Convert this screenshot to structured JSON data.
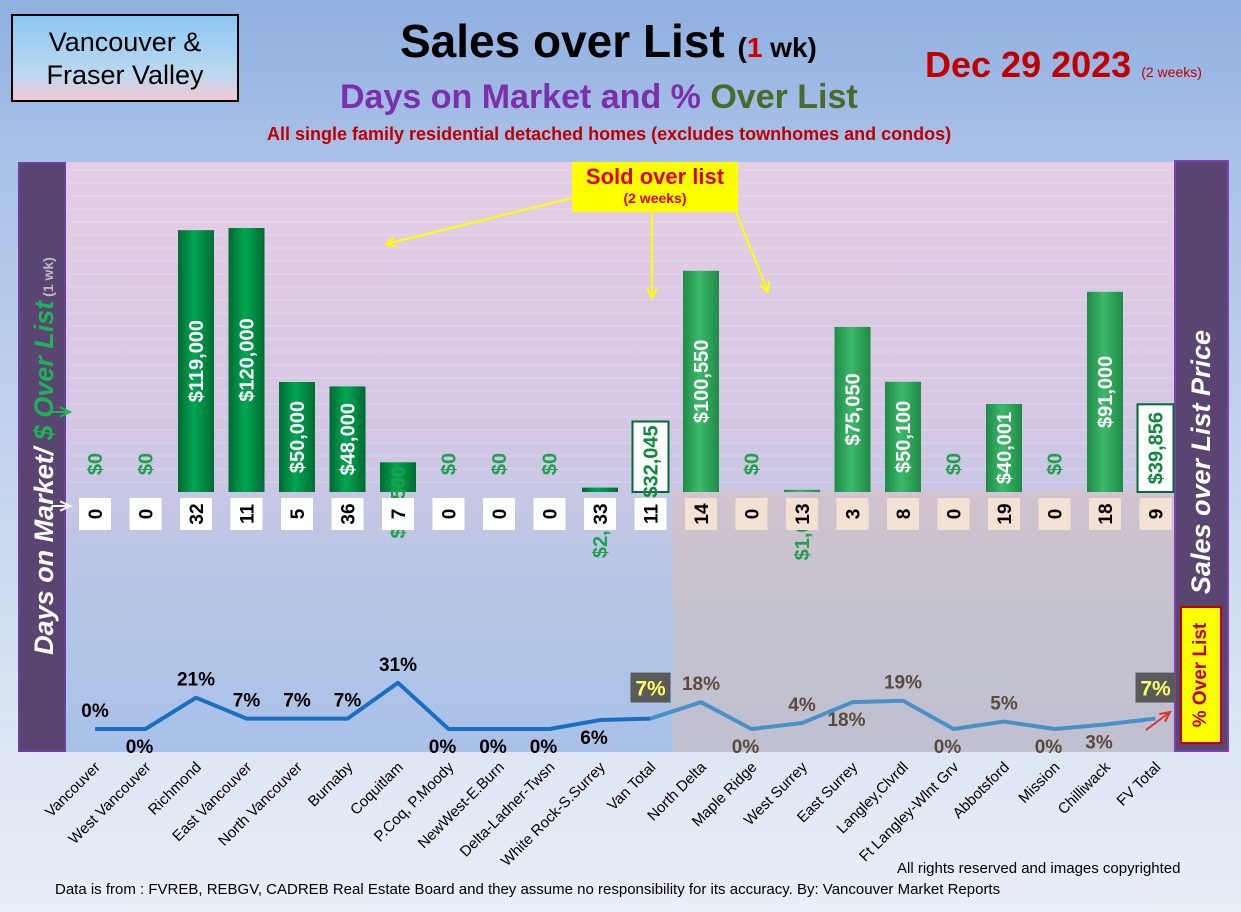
{
  "header": {
    "region_line1": "Vancouver &",
    "region_line2": "Fraser Valley",
    "title_main": "Sales over List",
    "title_paren_open": "(",
    "title_num": "1",
    "title_unit": " wk)",
    "subtitle_part1": "Days on Market and % ",
    "subtitle_part2": "Over List",
    "subnote": "All single family residential detached homes (excludes townhomes and condos)",
    "date": "Dec 29  2023",
    "date_note": "(2 weeks)"
  },
  "left_axis": {
    "part1": "Days on Market/ ",
    "part2": "$ Over List",
    "part3": " (1 wk)"
  },
  "right_axis": {
    "label": "Sales over List Price"
  },
  "pct_axis": {
    "label": "% Over List"
  },
  "callout": {
    "line1": "Sold over list",
    "line2": "(2 weeks)"
  },
  "footer": {
    "rights": "All rights reserved and  images copyrighted",
    "source": "Data is from : FVREB, REBGV, CADREB Real Estate Board and they assume no responsibility for its accuracy. By: Vancouver Market Reports"
  },
  "colors": {
    "bar_van": "#00a651",
    "bar_fv": "#3cb96a",
    "line_van": "#1a6fc0",
    "line_fv": "#4a90c8",
    "total_badge": "#5a5a5a",
    "total_text": "#ffff66"
  },
  "chart_data": {
    "type": "bar",
    "categories": [
      "Vancouver",
      "West Vancouver",
      "Richmond",
      "East Vancouver",
      "North Vancouver",
      "Burnaby",
      "Coquitlam",
      "P.Coq, P.Moody",
      "NewWest-E.Burn",
      "Delta-Ladner-Twsn",
      "White Rock-S.Surrey",
      "Van Total",
      "North Delta",
      "Maple Ridge",
      "West Surrey",
      "East Surrey",
      "Langley,Clvrdl",
      "Ft Langley-Wlnt Grv",
      "Abbotsford",
      "Mission",
      "Chilliwack",
      "FV Total"
    ],
    "series": [
      {
        "name": "$ Over List",
        "values": [
          0,
          0,
          119000,
          120000,
          50000,
          48000,
          13500,
          0,
          0,
          0,
          2000,
          32045,
          100550,
          0,
          1000,
          75050,
          50100,
          0,
          40001,
          0,
          91000,
          39856
        ],
        "labels": [
          "$0",
          "$0",
          "$119,000",
          "$120,000",
          "$50,000",
          "$48,000",
          "$13,500",
          "$0",
          "$0",
          "$0",
          "$2,000",
          "$32,045",
          "$100,550",
          "$0",
          "$1,000",
          "$75,050",
          "$50,100",
          "$0",
          "$40,001",
          "$0",
          "$91,000",
          "$39,856"
        ]
      },
      {
        "name": "Days on Market",
        "values": [
          0,
          0,
          32,
          11,
          5,
          36,
          7,
          0,
          0,
          0,
          33,
          11,
          14,
          0,
          13,
          3,
          8,
          0,
          19,
          0,
          18,
          9
        ]
      },
      {
        "name": "% Over List",
        "values": [
          0,
          0,
          21,
          7,
          7,
          7,
          31,
          0,
          0,
          0,
          6,
          7,
          18,
          0,
          4,
          18,
          19,
          0,
          5,
          0,
          3,
          7
        ],
        "labels": [
          "0%",
          "0%",
          "21%",
          "7%",
          "7%",
          "7%",
          "31%",
          "0%",
          "0%",
          "0%",
          "6%",
          "7%",
          "18%",
          "0%",
          "4%",
          "18%",
          "19%",
          "0%",
          "5%",
          "0%",
          "3%",
          "7%"
        ]
      }
    ],
    "ylim": [
      0,
      150000
    ],
    "pct_ylim": [
      0,
      100
    ]
  }
}
